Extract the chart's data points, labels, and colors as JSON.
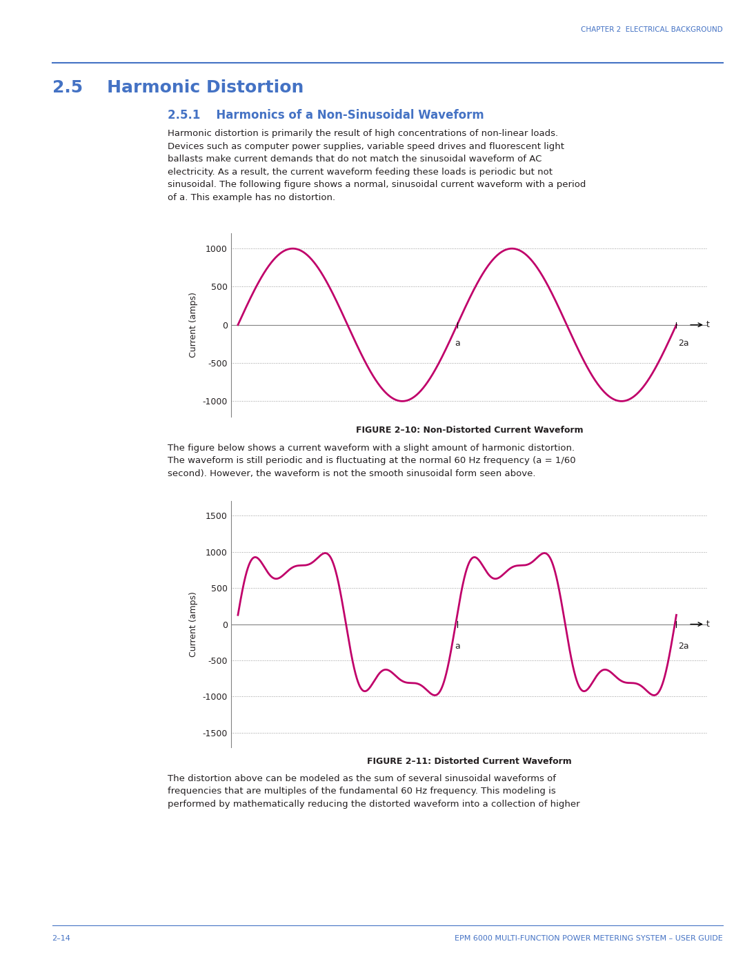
{
  "page_bg": "#ffffff",
  "chapter_header": "CHAPTER 2  ELECTRICAL BACKGROUND",
  "chapter_header_color": "#4472C4",
  "section_title": "2.5    Harmonic Distortion",
  "section_title_color": "#4472C4",
  "subsection_title": "2.5.1    Harmonics of a Non-Sinusoidal Waveform",
  "subsection_title_color": "#4472C4",
  "separator_color": "#4472C4",
  "body_text_1": "Harmonic distortion is primarily the result of high concentrations of non-linear loads.\nDevices such as computer power supplies, variable speed drives and fluorescent light\nballasts make current demands that do not match the sinusoidal waveform of AC\nelectricity. As a result, the current waveform feeding these loads is periodic but not\nsinusoidal. The following figure shows a normal, sinusoidal current waveform with a period\nof a. This example has no distortion.",
  "body_text_2": "The figure below shows a current waveform with a slight amount of harmonic distortion.\nThe waveform is still periodic and is fluctuating at the normal 60 Hz frequency (a = 1/60\nsecond). However, the waveform is not the smooth sinusoidal form seen above.",
  "body_text_3": "The distortion above can be modeled as the sum of several sinusoidal waveforms of\nfrequencies that are multiples of the fundamental 60 Hz frequency. This modeling is\nperformed by mathematically reducing the distorted waveform into a collection of higher",
  "body_text_color": "#231F20",
  "wave_color": "#C0006A",
  "wave_linewidth": 2.0,
  "fig1_yticks": [
    -1000,
    -500,
    0,
    500,
    1000
  ],
  "fig1_ylim": [
    -1200,
    1200
  ],
  "fig1_caption": "FIGURE 2–10: Non-Distorted Current Waveform",
  "fig2_yticks": [
    -1500,
    -1000,
    -500,
    0,
    500,
    1000,
    1500
  ],
  "fig2_ylim": [
    -1700,
    1700
  ],
  "fig2_caption": "FIGURE 2–11: Distorted Current Waveform",
  "ylabel": "Current (amps)",
  "axis_color": "#808080",
  "tick_color": "#231F20",
  "dotted_line_color": "#999999",
  "footer_left": "2–14",
  "footer_right": "EPM 6000 MULTI-FUNCTION POWER METERING SYSTEM – USER GUIDE",
  "footer_color": "#4472C4"
}
